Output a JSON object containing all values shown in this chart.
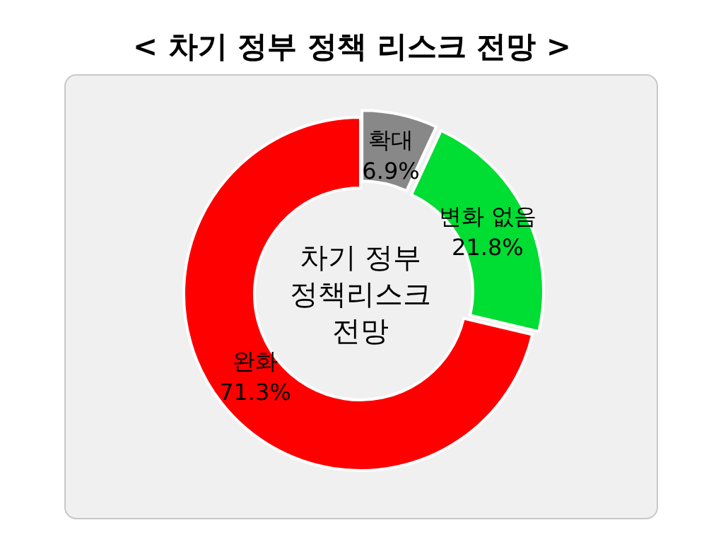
{
  "chart_data": {
    "type": "donut",
    "title": "< 차기 정부 정책 리스크 전망 >",
    "categories": [
      "확대",
      "변화 없음",
      "완화"
    ],
    "values": [
      6.9,
      21.8,
      71.3
    ],
    "value_labels": [
      "6.9%",
      "21.8%",
      "71.3%"
    ],
    "colors": [
      "#888888",
      "#00dd33",
      "#ff0000"
    ],
    "annotations": [
      "차기 정부\n정책리스크\n전망"
    ]
  }
}
